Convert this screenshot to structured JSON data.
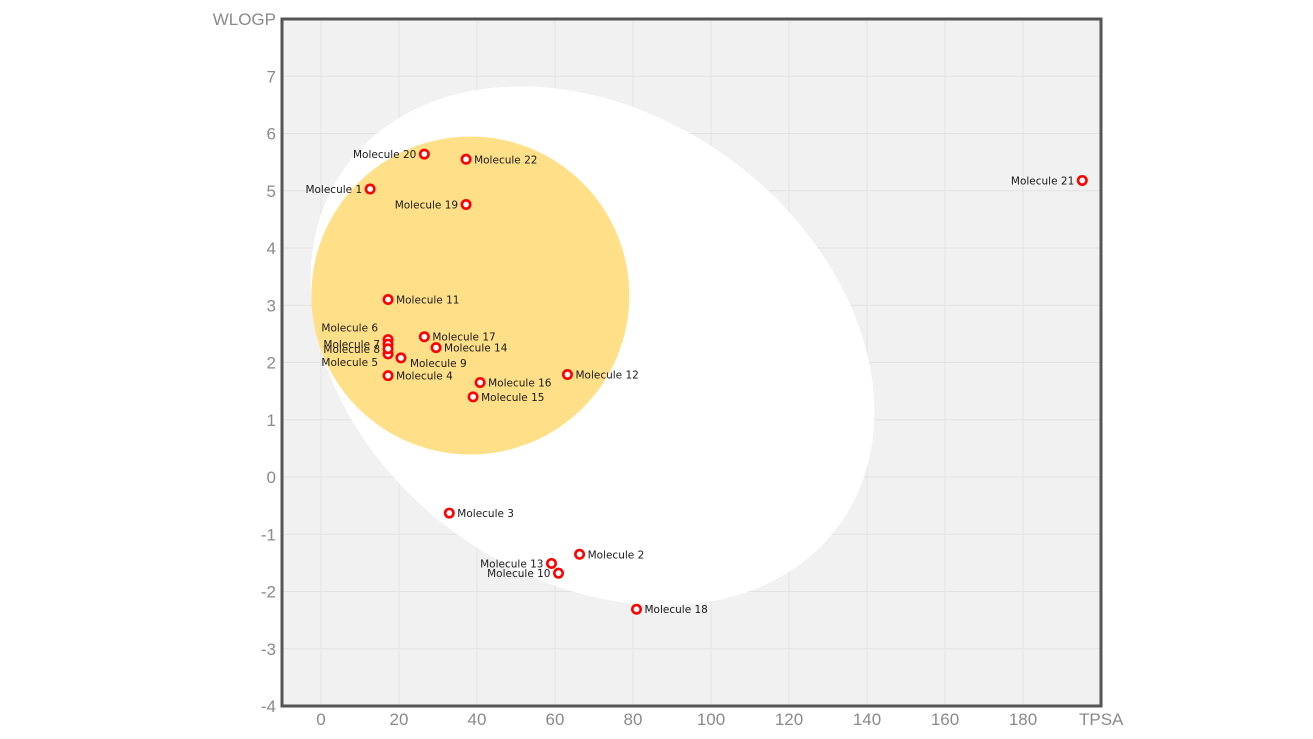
{
  "chart_data": {
    "type": "scatter",
    "title": "",
    "xlabel": "TPSA",
    "ylabel": "WLOGP",
    "xlim": [
      -10,
      200
    ],
    "ylim": [
      -4,
      8
    ],
    "xticks": [
      0,
      20,
      40,
      60,
      80,
      100,
      120,
      140,
      160,
      180
    ],
    "yticks": [
      -4,
      -3,
      -2,
      -1,
      0,
      1,
      2,
      3,
      4,
      5,
      6,
      7
    ],
    "grid": true,
    "legend": "none",
    "colors": {
      "plot_background": "#f1f1f1",
      "egg_white": "#ffffff",
      "yolk": "#ffdf87",
      "marker": "#ff0000",
      "frame": "#555555"
    },
    "regions": [
      {
        "name": "egg-white",
        "center": [
          69.6,
          2.29
        ]
      },
      {
        "name": "yolk",
        "center": [
          38.3,
          3.17
        ]
      }
    ],
    "points": [
      {
        "label": "Molecule 1",
        "x": 12.6,
        "y": 5.03,
        "label_side": "left"
      },
      {
        "label": "Molecule 2",
        "x": 66.3,
        "y": -1.35,
        "label_side": "right"
      },
      {
        "label": "Molecule 3",
        "x": 32.9,
        "y": -0.63,
        "label_side": "right"
      },
      {
        "label": "Molecule 4",
        "x": 17.2,
        "y": 1.77,
        "label_side": "right"
      },
      {
        "label": "Molecule 5",
        "x": 17.2,
        "y": 2.15,
        "label_side": "left-below"
      },
      {
        "label": "Molecule 6",
        "x": 17.2,
        "y": 2.4,
        "label_side": "left-above"
      },
      {
        "label": "Molecule 7",
        "x": 17.2,
        "y": 2.32,
        "label_side": "left"
      },
      {
        "label": "Molecule 8",
        "x": 17.2,
        "y": 2.24,
        "label_side": "left"
      },
      {
        "label": "Molecule 9",
        "x": 20.5,
        "y": 2.08,
        "label_side": "right-below"
      },
      {
        "label": "Molecule 10",
        "x": 60.9,
        "y": -1.68,
        "label_side": "left"
      },
      {
        "label": "Molecule 11",
        "x": 17.2,
        "y": 3.1,
        "label_side": "right"
      },
      {
        "label": "Molecule 12",
        "x": 63.2,
        "y": 1.79,
        "label_side": "right"
      },
      {
        "label": "Molecule 13",
        "x": 59.1,
        "y": -1.51,
        "label_side": "left"
      },
      {
        "label": "Molecule 14",
        "x": 29.5,
        "y": 2.26,
        "label_side": "right"
      },
      {
        "label": "Molecule 15",
        "x": 39.0,
        "y": 1.4,
        "label_side": "right"
      },
      {
        "label": "Molecule 16",
        "x": 40.8,
        "y": 1.65,
        "label_side": "right"
      },
      {
        "label": "Molecule 17",
        "x": 26.5,
        "y": 2.45,
        "label_side": "right"
      },
      {
        "label": "Molecule 18",
        "x": 80.9,
        "y": -2.31,
        "label_side": "right"
      },
      {
        "label": "Molecule 19",
        "x": 37.2,
        "y": 4.76,
        "label_side": "left"
      },
      {
        "label": "Molecule 20",
        "x": 26.5,
        "y": 5.64,
        "label_side": "left"
      },
      {
        "label": "Molecule 21",
        "x": 195.2,
        "y": 5.18,
        "label_side": "left"
      },
      {
        "label": "Molecule 22",
        "x": 37.2,
        "y": 5.55,
        "label_side": "right"
      }
    ]
  }
}
